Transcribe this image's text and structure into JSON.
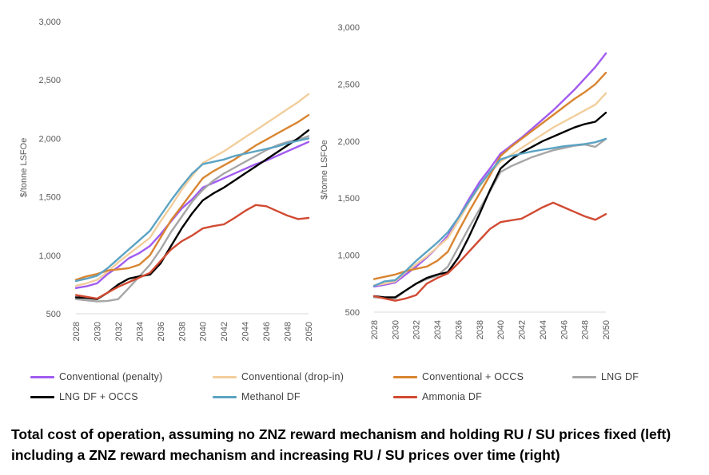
{
  "chart_data": [
    {
      "type": "line",
      "ylabel": "$/tonne LSFOe",
      "ylim": [
        500,
        3000
      ],
      "yticks": [
        "3,000",
        "2,500",
        "2,000",
        "1,500",
        "1,000",
        "500"
      ],
      "x": [
        2028,
        2029,
        2030,
        2031,
        2032,
        2033,
        2034,
        2035,
        2036,
        2037,
        2038,
        2039,
        2040,
        2041,
        2042,
        2043,
        2044,
        2045,
        2046,
        2047,
        2048,
        2049,
        2050
      ],
      "xticks": [
        "2028",
        "2030",
        "2032",
        "2034",
        "2036",
        "2038",
        "2040",
        "2042",
        "2044",
        "2046",
        "2048",
        "2050"
      ],
      "grid": false,
      "legend": "bottom",
      "series": [
        {
          "name": "Conventional (penalty)",
          "color": "#a15cf0",
          "values": [
            720,
            735,
            760,
            840,
            900,
            975,
            1020,
            1080,
            1180,
            1290,
            1400,
            1480,
            1580,
            1620,
            1660,
            1700,
            1740,
            1780,
            1810,
            1850,
            1890,
            1930,
            1970
          ]
        },
        {
          "name": "Conventional (drop-in)",
          "color": "#f2ce9c",
          "values": [
            740,
            760,
            790,
            860,
            940,
            1010,
            1080,
            1150,
            1290,
            1420,
            1560,
            1680,
            1790,
            1840,
            1890,
            1950,
            2010,
            2070,
            2130,
            2190,
            2250,
            2310,
            2380
          ]
        },
        {
          "name": "Conventional + OCCS",
          "color": "#d98531",
          "values": [
            790,
            820,
            840,
            870,
            880,
            890,
            920,
            1000,
            1150,
            1300,
            1420,
            1540,
            1660,
            1720,
            1770,
            1820,
            1880,
            1940,
            1990,
            2040,
            2090,
            2140,
            2200
          ]
        },
        {
          "name": "LNG DF",
          "color": "#a6a6a6",
          "values": [
            625,
            615,
            605,
            610,
            625,
            720,
            820,
            920,
            1050,
            1200,
            1330,
            1460,
            1560,
            1640,
            1700,
            1750,
            1800,
            1850,
            1900,
            1940,
            1970,
            1990,
            2020
          ]
        },
        {
          "name": "LNG DF + OCCS",
          "color": "#000000",
          "values": [
            640,
            635,
            625,
            680,
            750,
            800,
            820,
            835,
            930,
            1080,
            1230,
            1360,
            1470,
            1530,
            1580,
            1640,
            1700,
            1760,
            1820,
            1880,
            1940,
            2000,
            2070
          ]
        },
        {
          "name": "Methanol DF",
          "color": "#5ba3c4",
          "values": [
            780,
            800,
            825,
            890,
            970,
            1050,
            1130,
            1210,
            1340,
            1470,
            1590,
            1700,
            1780,
            1800,
            1820,
            1850,
            1870,
            1890,
            1910,
            1930,
            1960,
            1980,
            2000
          ]
        },
        {
          "name": "Ammonia DF",
          "color": "#d14a32",
          "values": [
            660,
            645,
            630,
            680,
            730,
            770,
            810,
            850,
            950,
            1050,
            1120,
            1170,
            1230,
            1250,
            1265,
            1320,
            1380,
            1430,
            1420,
            1380,
            1340,
            1310,
            1320
          ]
        }
      ]
    },
    {
      "type": "line",
      "ylabel": "$/tonne LSFOe",
      "ylim": [
        500,
        3000
      ],
      "yticks": [
        "3,000",
        "2,500",
        "2,000",
        "1,500",
        "1,000",
        "500"
      ],
      "x": [
        2028,
        2029,
        2030,
        2031,
        2032,
        2033,
        2034,
        2035,
        2036,
        2037,
        2038,
        2039,
        2040,
        2041,
        2042,
        2043,
        2044,
        2045,
        2046,
        2047,
        2048,
        2049,
        2050
      ],
      "xticks": [
        "2028",
        "2030",
        "2032",
        "2034",
        "2036",
        "2038",
        "2040",
        "2042",
        "2044",
        "2046",
        "2048",
        "2050"
      ],
      "grid": false,
      "legend": "bottom",
      "series": [
        {
          "name": "Conventional (penalty)",
          "color": "#a15cf0",
          "values": [
            725,
            740,
            760,
            830,
            900,
            980,
            1070,
            1170,
            1330,
            1490,
            1640,
            1760,
            1890,
            1960,
            2030,
            2110,
            2190,
            2270,
            2360,
            2450,
            2550,
            2650,
            2770
          ]
        },
        {
          "name": "Conventional (drop-in)",
          "color": "#f2ce9c",
          "values": [
            735,
            750,
            770,
            850,
            920,
            990,
            1070,
            1150,
            1300,
            1460,
            1600,
            1720,
            1820,
            1880,
            1940,
            2000,
            2060,
            2120,
            2170,
            2220,
            2270,
            2320,
            2420
          ]
        },
        {
          "name": "Conventional + OCCS",
          "color": "#d98531",
          "values": [
            790,
            810,
            830,
            860,
            880,
            900,
            950,
            1030,
            1210,
            1380,
            1540,
            1700,
            1870,
            1950,
            2020,
            2090,
            2160,
            2230,
            2300,
            2370,
            2430,
            2500,
            2600
          ]
        },
        {
          "name": "LNG DF",
          "color": "#a6a6a6",
          "values": [
            630,
            625,
            620,
            690,
            750,
            790,
            820,
            900,
            1070,
            1240,
            1400,
            1560,
            1730,
            1780,
            1820,
            1860,
            1890,
            1920,
            1940,
            1960,
            1970,
            1950,
            2020
          ]
        },
        {
          "name": "LNG DF + OCCS",
          "color": "#000000",
          "values": [
            640,
            630,
            630,
            690,
            750,
            800,
            830,
            850,
            980,
            1160,
            1360,
            1570,
            1760,
            1840,
            1900,
            1950,
            2000,
            2040,
            2080,
            2120,
            2150,
            2170,
            2250
          ]
        },
        {
          "name": "Methanol DF",
          "color": "#5ba3c4",
          "values": [
            730,
            770,
            780,
            860,
            950,
            1030,
            1110,
            1200,
            1330,
            1470,
            1610,
            1730,
            1840,
            1870,
            1890,
            1910,
            1925,
            1940,
            1955,
            1965,
            1975,
            1990,
            2020
          ]
        },
        {
          "name": "Ammonia DF",
          "color": "#d14a32",
          "values": [
            640,
            620,
            600,
            620,
            650,
            750,
            800,
            840,
            930,
            1030,
            1130,
            1230,
            1290,
            1305,
            1320,
            1370,
            1420,
            1460,
            1420,
            1380,
            1340,
            1310,
            1360
          ]
        }
      ]
    }
  ],
  "legend": [
    {
      "label": "Conventional (penalty)",
      "color": "#a15cf0"
    },
    {
      "label": "Conventional (drop-in)",
      "color": "#f2ce9c"
    },
    {
      "label": "Conventional + OCCS",
      "color": "#d98531"
    },
    {
      "label": "LNG DF",
      "color": "#a6a6a6"
    },
    {
      "label": "LNG DF + OCCS",
      "color": "#000000"
    },
    {
      "label": "Methanol DF",
      "color": "#5ba3c4"
    },
    {
      "label": "Ammonia DF",
      "color": "#d14a32"
    }
  ],
  "caption": {
    "line1": "Total cost of operation, assuming no ZNZ reward mechanism and holding RU / SU prices fixed (left)",
    "line2": "including a ZNZ reward mechanism and increasing RU / SU prices over time (right)"
  }
}
